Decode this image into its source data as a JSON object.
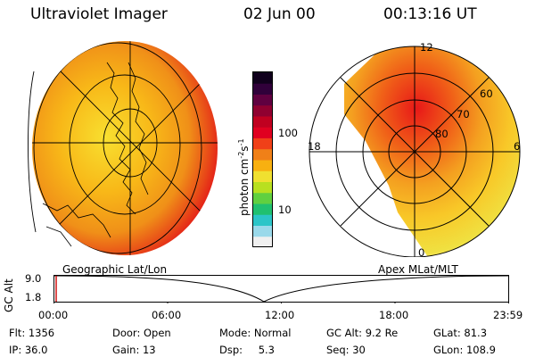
{
  "header": {
    "instrument": "Ultraviolet Imager",
    "date": "02 Jun 00",
    "time": "00:13:16 UT"
  },
  "colorbar": {
    "unit_label": "photon cm",
    "unit_exp1": "-2",
    "unit_mid": "s",
    "unit_exp2": "-1",
    "tick_100": "100",
    "tick_10": "10",
    "colors": [
      "#f0f0f0",
      "#9ad9ea",
      "#2cc5c8",
      "#20c070",
      "#60d040",
      "#b8e020",
      "#f0e030",
      "#f8b010",
      "#f08018",
      "#f04018",
      "#e00020",
      "#c00020",
      "#900030",
      "#600040",
      "#30003a",
      "#10001c"
    ]
  },
  "polar_plot": {
    "mlt_labels": {
      "top": "12",
      "right": "6",
      "left": "18",
      "bottom": "0"
    },
    "lat_labels": [
      "60",
      "70",
      "80"
    ]
  },
  "timeline": {
    "left_label": "Geographic Lat/Lon",
    "right_label": "Apex MLat/MLT",
    "axis_title": "GC Alt",
    "y_ticks": [
      "9.0",
      "1.8"
    ],
    "x_ticks": [
      "00:00",
      "06:00",
      "12:00",
      "18:00",
      "23:59"
    ]
  },
  "info": {
    "flt_label": "Flt:",
    "flt_value": "1356",
    "ip_label": "IP:",
    "ip_value": "36.0",
    "door_label": "Door:",
    "door_value": "Open",
    "gain_label": "Gain:",
    "gain_value": "13",
    "mode_label": "Mode:",
    "mode_value": "Normal",
    "dsp_label": "Dsp:",
    "dsp_value": "5.3",
    "gcalt_label": "GC Alt:",
    "gcalt_value": "9.2 Re",
    "seq_label": "Seq:",
    "seq_value": "30",
    "glat_label": "GLat:",
    "glat_value": "81.3",
    "glon_label": "GLon:",
    "glon_value": "108.9"
  }
}
